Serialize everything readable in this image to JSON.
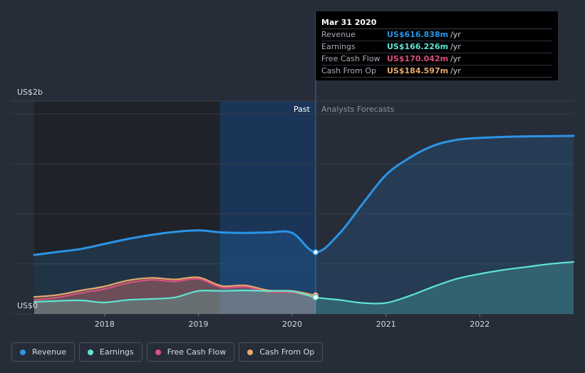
{
  "chart_data": {
    "type": "area",
    "y_axis_labels": {
      "top": "US$2b",
      "bottom": "US$0"
    },
    "ylim": [
      0,
      2000
    ],
    "xlim": [
      2017.25,
      2023.0
    ],
    "x_ticks": [
      "2018",
      "2019",
      "2020",
      "2021",
      "2022"
    ],
    "x_tick_values": [
      2018,
      2019,
      2020,
      2021,
      2022
    ],
    "divider_x": 2020.25,
    "region_labels": {
      "past": "Past",
      "forecast": "Analysts Forecasts"
    },
    "series": [
      {
        "name": "Revenue",
        "color": "#2b94e6",
        "x": [
          2017.25,
          2017.5,
          2017.75,
          2018.0,
          2018.25,
          2018.5,
          2018.75,
          2019.0,
          2019.25,
          2019.5,
          2019.75,
          2020.0,
          2020.25,
          2020.5,
          2020.75,
          2021.0,
          2021.25,
          2021.5,
          2021.75,
          2022.0,
          2022.25,
          2022.5,
          2022.75,
          2023.0
        ],
        "values": [
          590,
          620,
          650,
          700,
          750,
          790,
          820,
          835,
          815,
          810,
          815,
          810,
          617,
          800,
          1100,
          1390,
          1560,
          1680,
          1740,
          1760,
          1770,
          1775,
          1778,
          1780
        ]
      },
      {
        "name": "Earnings",
        "color": "#5ee6d2",
        "x": [
          2017.25,
          2017.5,
          2017.75,
          2018.0,
          2018.25,
          2018.5,
          2018.75,
          2019.0,
          2019.25,
          2019.5,
          2019.75,
          2020.0,
          2020.25,
          2020.5,
          2020.75,
          2021.0,
          2021.25,
          2021.5,
          2021.75,
          2022.0,
          2022.25,
          2022.5,
          2022.75,
          2023.0
        ],
        "values": [
          120,
          130,
          135,
          115,
          140,
          150,
          165,
          230,
          230,
          235,
          228,
          225,
          166,
          140,
          110,
          110,
          180,
          270,
          350,
          400,
          440,
          470,
          500,
          520
        ]
      },
      {
        "name": "Free Cash Flow",
        "color": "#d9507f",
        "x": [
          2017.25,
          2017.5,
          2017.75,
          2018.0,
          2018.25,
          2018.5,
          2018.75,
          2019.0,
          2019.25,
          2019.5,
          2019.75,
          2020.0,
          2020.25
        ],
        "values": [
          140,
          165,
          210,
          250,
          310,
          340,
          325,
          350,
          265,
          270,
          220,
          215,
          170
        ]
      },
      {
        "name": "Cash From Op",
        "color": "#e8a96a",
        "x": [
          2017.25,
          2017.5,
          2017.75,
          2018.0,
          2018.25,
          2018.5,
          2018.75,
          2019.0,
          2019.25,
          2019.5,
          2019.75,
          2020.0,
          2020.25
        ],
        "values": [
          170,
          190,
          235,
          275,
          335,
          360,
          345,
          365,
          280,
          285,
          235,
          230,
          185
        ]
      }
    ]
  },
  "tooltip": {
    "date": "Mar 31 2020",
    "rows": [
      {
        "label": "Revenue",
        "value": "US$616.838m",
        "unit": "/yr",
        "color": "#2b94e6"
      },
      {
        "label": "Earnings",
        "value": "US$166.226m",
        "unit": "/yr",
        "color": "#5ee6d2"
      },
      {
        "label": "Free Cash Flow",
        "value": "US$170.042m",
        "unit": "/yr",
        "color": "#d9507f"
      },
      {
        "label": "Cash From Op",
        "value": "US$184.597m",
        "unit": "/yr",
        "color": "#e8a96a"
      }
    ]
  },
  "legend": [
    {
      "label": "Revenue",
      "color": "#2b94e6"
    },
    {
      "label": "Earnings",
      "color": "#5ee6d2"
    },
    {
      "label": "Free Cash Flow",
      "color": "#d9507f"
    },
    {
      "label": "Cash From Op",
      "color": "#e8a96a"
    }
  ]
}
